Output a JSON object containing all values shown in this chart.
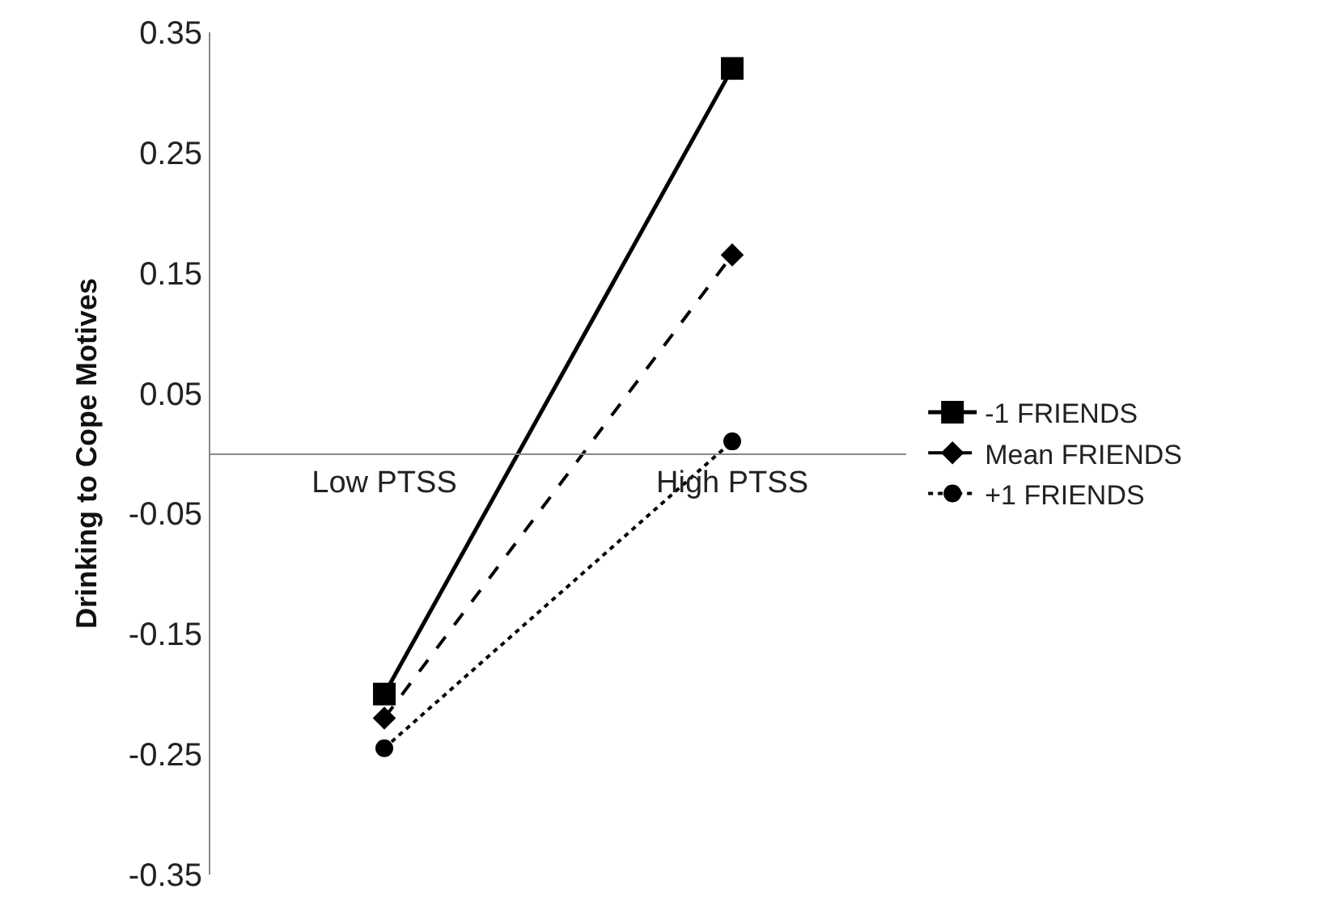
{
  "chart_data": {
    "type": "line",
    "ylabel": "Drinking to Cope Motives",
    "categories": [
      "Low PTSS",
      "High PTSS"
    ],
    "series": [
      {
        "name": "-1 FRIENDS",
        "color": "#000000",
        "values": [
          -0.2,
          0.32
        ],
        "marker": "square",
        "line_style": "solid"
      },
      {
        "name": "Mean FRIENDS",
        "color": "#000000",
        "values": [
          -0.22,
          0.165
        ],
        "marker": "diamond",
        "line_style": "dashed"
      },
      {
        "name": "+1 FRIENDS",
        "color": "#000000",
        "values": [
          -0.245,
          0.01
        ],
        "marker": "circle",
        "line_style": "dotted"
      }
    ],
    "ylim": [
      -0.35,
      0.35
    ],
    "yticks": [
      -0.35,
      -0.25,
      -0.15,
      -0.05,
      0.05,
      0.15,
      0.25,
      0.35
    ],
    "grid": false,
    "legend": "right"
  }
}
